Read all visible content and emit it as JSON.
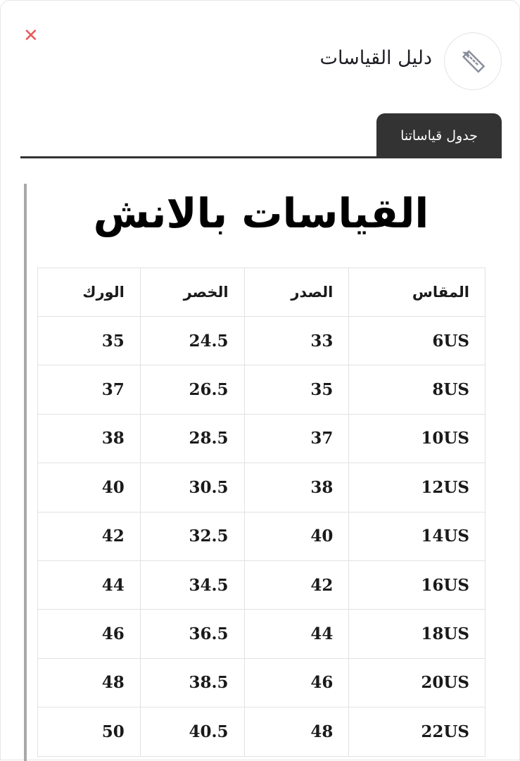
{
  "header": {
    "title": "دليل القياسات",
    "close_icon": "close-icon",
    "ruler_icon": "ruler-pencil-icon",
    "accent": "#e85b5b"
  },
  "tabs": [
    {
      "label": "جدول قياساتنا",
      "active": true
    }
  ],
  "content": {
    "title": "القياسات بالانش",
    "columns": [
      "المقاس",
      "الصدر",
      "الخصر",
      "الورك"
    ],
    "rows": [
      [
        "6US",
        "33",
        "24.5",
        "35"
      ],
      [
        "8US",
        "35",
        "26.5",
        "37"
      ],
      [
        "10US",
        "37",
        "28.5",
        "38"
      ],
      [
        "12US",
        "38",
        "30.5",
        "40"
      ],
      [
        "14US",
        "40",
        "32.5",
        "42"
      ],
      [
        "16US",
        "42",
        "34.5",
        "44"
      ],
      [
        "18US",
        "44",
        "36.5",
        "46"
      ],
      [
        "20US",
        "46",
        "38.5",
        "48"
      ],
      [
        "22US",
        "48",
        "40.5",
        "50"
      ]
    ]
  }
}
